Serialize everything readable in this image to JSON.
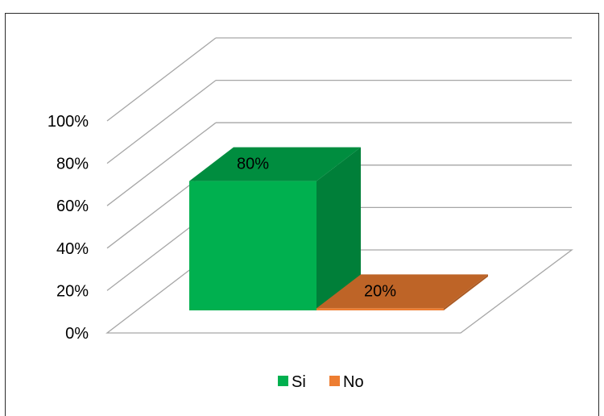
{
  "chart_data": {
    "type": "bar",
    "style": "3d-column",
    "categories": [
      "Si",
      "No"
    ],
    "values": [
      80,
      20
    ],
    "data_labels": [
      "80%",
      "20%"
    ],
    "colors": [
      "#00b04f",
      "#ed7d31"
    ],
    "ylim": [
      0,
      100
    ],
    "y_ticks": [
      "0%",
      "20%",
      "40%",
      "60%",
      "80%",
      "100%"
    ],
    "grid": true,
    "legend": {
      "position": "bottom",
      "entries": [
        {
          "label": "Si",
          "color": "#00b04f"
        },
        {
          "label": "No",
          "color": "#ed7d31"
        }
      ]
    },
    "title": "",
    "xlabel": "",
    "ylabel": ""
  }
}
